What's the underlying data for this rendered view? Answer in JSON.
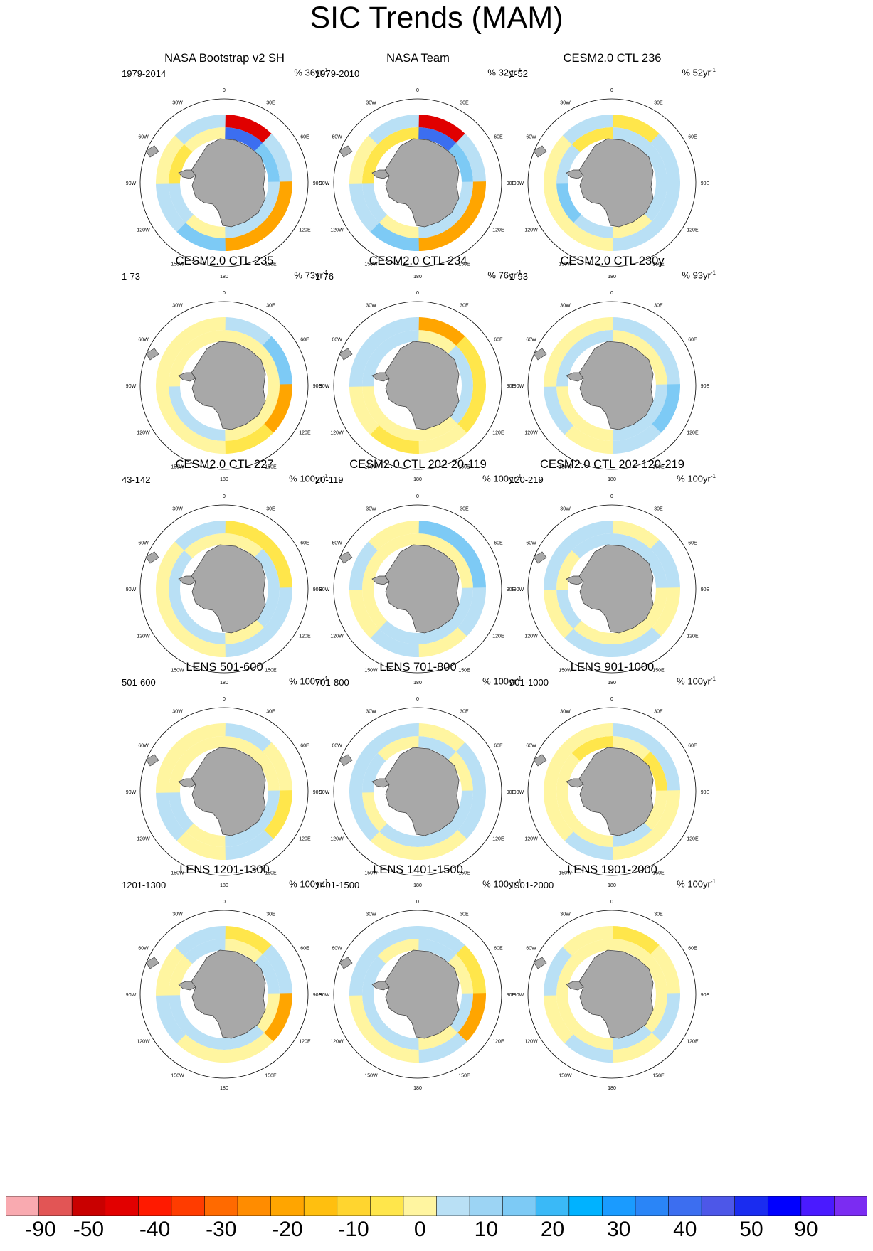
{
  "figure": {
    "title": "SIC Trends (MAM)"
  },
  "chart_data": {
    "type": "polar-map-grid",
    "title": "SIC Trends (MAM)",
    "units_prefix": "%",
    "longitude_labels": [
      "0",
      "30E",
      "60E",
      "90E",
      "120E",
      "150E",
      "180",
      "150W",
      "120W",
      "90W",
      "60W",
      "30W"
    ],
    "panels": [
      {
        "title": "NASA Bootstrap v2 SH",
        "years": "1979-2014",
        "units": "% 36yr",
        "units_exp": "-1",
        "pattern": [
          -3,
          -2,
          -1,
          0,
          1,
          0,
          2,
          1,
          -4,
          -1,
          3,
          3,
          -2,
          -1,
          1,
          0
        ]
      },
      {
        "title": "NASA Team",
        "years": "1979-2010",
        "units": "% 32yr",
        "units_exp": "-1",
        "pattern": [
          -3,
          -2,
          -1,
          0,
          1,
          0,
          2,
          2,
          -4,
          -1,
          3,
          3,
          -2,
          -1,
          1,
          0
        ]
      },
      {
        "title": "CESM2.0 CTL 236",
        "years": "1-52",
        "units": "% 52yr",
        "units_exp": "-1",
        "pattern": [
          -1,
          -1,
          -1,
          1,
          -1,
          -2,
          -1,
          2,
          2,
          -1,
          -1,
          -1,
          1,
          1,
          1,
          -1
        ]
      },
      {
        "title": "CESM2.0 CTL 235",
        "years": "1-73",
        "units": "% 73yr",
        "units_exp": "-1",
        "pattern": [
          1,
          1,
          1,
          1,
          -1,
          -1,
          1,
          1,
          -1,
          -2,
          3,
          2,
          1,
          1,
          1,
          1
        ]
      },
      {
        "title": "CESM2.0 CTL 234",
        "years": "1-76",
        "units": "% 76yr",
        "units_exp": "-1",
        "pattern": [
          1,
          -1,
          -1,
          1,
          1,
          1,
          -1,
          -1,
          3,
          2,
          2,
          1,
          2,
          1,
          -1,
          -1
        ]
      },
      {
        "title": "CESM2.0 CTL 230y",
        "years": "1-93",
        "units": "% 93yr",
        "units_exp": "-1",
        "pattern": [
          1,
          1,
          -1,
          -1,
          1,
          1,
          -1,
          -1,
          -1,
          -1,
          -2,
          -1,
          1,
          -1,
          1,
          1
        ]
      },
      {
        "title": "CESM2.0 CTL 227",
        "years": "43-142",
        "units": "% 100yr",
        "units_exp": "-1",
        "pattern": [
          1,
          -1,
          -1,
          1,
          -1,
          -1,
          -1,
          1,
          2,
          2,
          -1,
          -1,
          1,
          1,
          1,
          -1
        ]
      },
      {
        "title": "CESM2.0 CTL 202 20-119",
        "years": "20-119",
        "units": "% 100yr",
        "units_exp": "-1",
        "pattern": [
          1,
          1,
          -1,
          -1,
          -1,
          1,
          1,
          1,
          -2,
          -2,
          -1,
          1,
          -1,
          1,
          -1,
          1
        ]
      },
      {
        "title": "CESM2.0 CTL 202 120-219",
        "years": "120-219",
        "units": "% 100yr",
        "units_exp": "-1",
        "pattern": [
          -1,
          -1,
          1,
          1,
          1,
          -1,
          1,
          -1,
          1,
          -1,
          1,
          -1,
          -1,
          1,
          -1,
          -1
        ]
      },
      {
        "title": "LENS 501-600",
        "years": "501-600",
        "units": "% 100yr",
        "units_exp": "-1",
        "pattern": [
          1,
          1,
          -1,
          -1,
          1,
          -1,
          1,
          1,
          -1,
          1,
          2,
          -1,
          1,
          -1,
          1,
          1
        ]
      },
      {
        "title": "LENS 701-800",
        "years": "701-800",
        "units": "% 100yr",
        "units_exp": "-1",
        "pattern": [
          -1,
          1,
          -1,
          -1,
          -1,
          1,
          -1,
          1,
          1,
          -1,
          -1,
          1,
          1,
          -1,
          -1,
          -1
        ]
      },
      {
        "title": "LENS 901-1000",
        "years": "901-1000",
        "units": "% 100yr",
        "units_exp": "-1",
        "pattern": [
          1,
          2,
          1,
          -1,
          1,
          1,
          1,
          2,
          -1,
          -1,
          1,
          1,
          -1,
          1,
          1,
          1
        ]
      },
      {
        "title": "LENS 1201-1300",
        "years": "1201-1300",
        "units": "% 100yr",
        "units_exp": "-1",
        "pattern": [
          1,
          -1,
          1,
          -1,
          -1,
          -1,
          1,
          -1,
          2,
          -1,
          3,
          1,
          1,
          -1,
          1,
          -1
        ]
      },
      {
        "title": "LENS 1401-1500",
        "years": "1401-1500",
        "units": "% 100yr",
        "units_exp": "-1",
        "pattern": [
          -1,
          1,
          -1,
          1,
          -1,
          -1,
          -1,
          1,
          -1,
          2,
          3,
          -1,
          1,
          1,
          -1,
          -1
        ]
      },
      {
        "title": "LENS 1901-2000",
        "years": "1901-2000",
        "units": "% 100yr",
        "units_exp": "-1",
        "pattern": [
          1,
          1,
          1,
          -1,
          1,
          1,
          1,
          1,
          2,
          1,
          -1,
          1,
          -1,
          1,
          -1,
          1
        ]
      }
    ],
    "colorbar": {
      "colors": [
        "#f9aab0",
        "#e25555",
        "#c90000",
        "#e20000",
        "#ff1a00",
        "#ff3c00",
        "#ff6a00",
        "#ff8c00",
        "#ffa500",
        "#ffbf0f",
        "#ffd52f",
        "#ffe64b",
        "#fff5a0",
        "#b9e0f5",
        "#9cd4f4",
        "#7dcaf5",
        "#3ab9f7",
        "#00b2ff",
        "#1a9bff",
        "#2a85f7",
        "#3c6ef0",
        "#4d57e8",
        "#1a2cf0",
        "#0000ff",
        "#4a1aff",
        "#7b2cf2"
      ],
      "labels": [
        "-90",
        "-50",
        "-40",
        "-30",
        "-20",
        "-10",
        "0",
        "10",
        "20",
        "30",
        "40",
        "50",
        "90"
      ],
      "label_positions_index": [
        1,
        3,
        5,
        7,
        9,
        11,
        13,
        15,
        17,
        19,
        21,
        23,
        25
      ]
    }
  }
}
